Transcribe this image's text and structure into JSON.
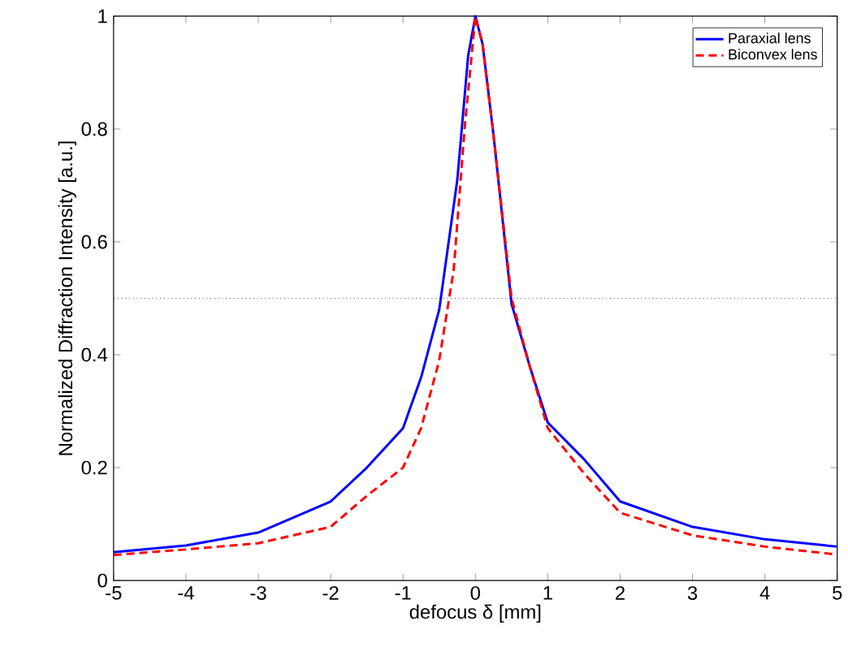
{
  "chart_data": {
    "type": "line",
    "xlabel": "defocus δ [mm]",
    "ylabel": "Normalized Diffraction Intensity [a.u.]",
    "xlim": [
      -5,
      5
    ],
    "ylim": [
      0,
      1
    ],
    "xticks": [
      -5,
      -4,
      -3,
      -2,
      -1,
      0,
      1,
      2,
      3,
      4,
      5
    ],
    "yticks": [
      0,
      0.2,
      0.4,
      0.6,
      0.8,
      1
    ],
    "legend": "top right",
    "grid": false,
    "ref_lines": [
      {
        "axis": "y",
        "value": 0.5,
        "color": "#000000",
        "line_style": "dotted"
      }
    ],
    "series": [
      {
        "name": "Paraxial lens",
        "color": "#0000ff",
        "line_style": "solid",
        "x": [
          -5,
          -4,
          -3,
          -2,
          -1.5,
          -1,
          -0.75,
          -0.5,
          -0.25,
          -0.1,
          0,
          0.1,
          0.25,
          0.5,
          0.75,
          1,
          1.5,
          2,
          3,
          4,
          5
        ],
        "values": [
          0.05,
          0.062,
          0.085,
          0.14,
          0.2,
          0.27,
          0.36,
          0.48,
          0.71,
          0.93,
          1,
          0.95,
          0.79,
          0.49,
          0.38,
          0.28,
          0.215,
          0.14,
          0.095,
          0.073,
          0.06
        ]
      },
      {
        "name": "Biconvex lens",
        "color": "#ff0000",
        "line_style": "dashed",
        "x": [
          -5,
          -4,
          -3,
          -2,
          -1.5,
          -1,
          -0.75,
          -0.5,
          -0.3,
          -0.15,
          0,
          0.1,
          0.25,
          0.5,
          0.75,
          1,
          1.5,
          2,
          3,
          4,
          5
        ],
        "values": [
          0.045,
          0.055,
          0.066,
          0.095,
          0.15,
          0.2,
          0.27,
          0.39,
          0.55,
          0.8,
          1,
          0.95,
          0.79,
          0.5,
          0.38,
          0.27,
          0.19,
          0.12,
          0.08,
          0.06,
          0.046
        ]
      }
    ]
  }
}
